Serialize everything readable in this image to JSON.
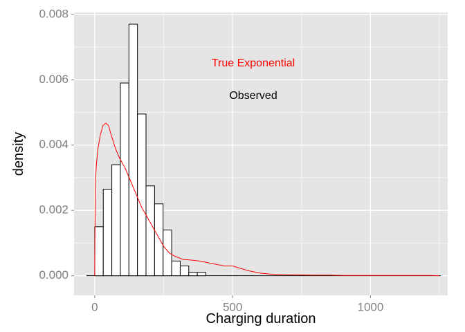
{
  "chart_data": {
    "type": "histogram",
    "xlabel": "Charging duration",
    "ylabel": "density",
    "xlim": [
      -75,
      1280
    ],
    "ylim": [
      -0.0006,
      0.00806
    ],
    "x_ticks": [
      0,
      500,
      1000
    ],
    "x_tick_labels": [
      "0",
      "500",
      "1000"
    ],
    "y_ticks": [
      0,
      0.002,
      0.004,
      0.006,
      0.008
    ],
    "y_tick_labels": [
      "0.000",
      "0.002",
      "0.004",
      "0.006",
      "0.008"
    ],
    "background_color": "#e5e5e5",
    "grid": true,
    "grid_color": "#ffffff",
    "bars": {
      "fill": "#ffffff",
      "stroke": "#000000",
      "bins": [
        {
          "x0": 0,
          "x1": 31,
          "density": 0.0015
        },
        {
          "x0": 31,
          "x1": 62,
          "density": 0.00265
        },
        {
          "x0": 62,
          "x1": 93,
          "density": 0.0034
        },
        {
          "x0": 93,
          "x1": 124,
          "density": 0.0059
        },
        {
          "x0": 124,
          "x1": 155,
          "density": 0.0077
        },
        {
          "x0": 155,
          "x1": 186,
          "density": 0.00495
        },
        {
          "x0": 186,
          "x1": 217,
          "density": 0.00275
        },
        {
          "x0": 217,
          "x1": 248,
          "density": 0.0022
        },
        {
          "x0": 248,
          "x1": 279,
          "density": 0.0014
        },
        {
          "x0": 279,
          "x1": 310,
          "density": 0.00045
        },
        {
          "x0": 310,
          "x1": 341,
          "density": 0.0003
        },
        {
          "x0": 341,
          "x1": 372,
          "density": 0.0001
        },
        {
          "x0": 372,
          "x1": 403,
          "density": 0.0001
        }
      ],
      "baseline_x": [
        -30,
        1255
      ]
    },
    "series": [
      {
        "type": "line",
        "color": "#ff0000",
        "points": [
          [
            0,
            0
          ],
          [
            2,
            0.0028
          ],
          [
            6,
            0.0034
          ],
          [
            12,
            0.0039
          ],
          [
            20,
            0.0043
          ],
          [
            30,
            0.0046
          ],
          [
            40,
            0.00467
          ],
          [
            50,
            0.0046
          ],
          [
            60,
            0.0043
          ],
          [
            75,
            0.0039
          ],
          [
            90,
            0.0036
          ],
          [
            110,
            0.0033
          ],
          [
            130,
            0.0029
          ],
          [
            150,
            0.0025
          ],
          [
            170,
            0.0021
          ],
          [
            190,
            0.0018
          ],
          [
            210,
            0.0015
          ],
          [
            230,
            0.0012
          ],
          [
            250,
            0.0009
          ],
          [
            270,
            0.0007
          ],
          [
            290,
            0.0006
          ],
          [
            320,
            0.0005
          ],
          [
            350,
            0.00048
          ],
          [
            380,
            0.00045
          ],
          [
            410,
            0.0004
          ],
          [
            440,
            0.00035
          ],
          [
            470,
            0.0003
          ],
          [
            500,
            0.0003
          ],
          [
            530,
            0.00022
          ],
          [
            560,
            0.00015
          ],
          [
            600,
            8e-05
          ],
          [
            650,
            4e-05
          ],
          [
            700,
            3e-05
          ],
          [
            800,
            2e-05
          ],
          [
            850,
            2e-05
          ],
          [
            900,
            1e-05
          ],
          [
            1000,
            1e-05
          ],
          [
            1100,
            1e-05
          ],
          [
            1220,
            1e-05
          ],
          [
            1250,
            0
          ]
        ]
      }
    ],
    "annotations": [
      {
        "text": "True Exponential",
        "color": "#ff0000",
        "x": 575,
        "y": 0.0065
      },
      {
        "text": "Observed",
        "color": "#000000",
        "x": 575,
        "y": 0.0055
      }
    ]
  }
}
